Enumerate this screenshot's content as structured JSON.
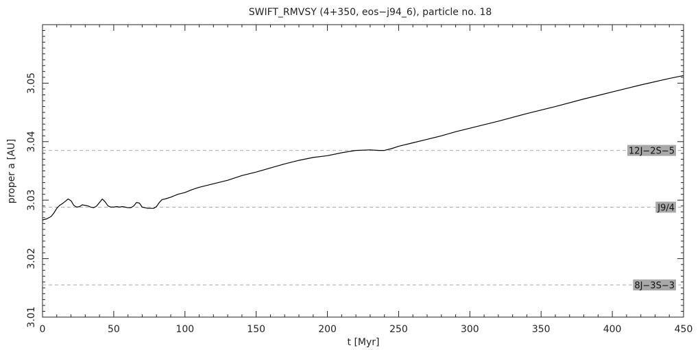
{
  "chart_data": {
    "type": "line",
    "title": "SWIFT_RMVSY (4+350, eos−j94_6), particle no. 18",
    "xlabel": "t [Myr]",
    "ylabel": "proper a [AU]",
    "xlim": [
      0,
      450
    ],
    "ylim": [
      3.01,
      3.06
    ],
    "x_ticks": [
      0,
      50,
      100,
      150,
      200,
      250,
      300,
      350,
      400,
      450
    ],
    "y_ticks": [
      3.01,
      3.02,
      3.03,
      3.04,
      3.05
    ],
    "x_tick_labels": [
      "0",
      "50",
      "100",
      "150",
      "200",
      "250",
      "300",
      "350",
      "400",
      "450"
    ],
    "y_tick_labels": [
      "3.01",
      "3.02",
      "3.03",
      "3.04",
      "3.05"
    ],
    "grid": false,
    "series": [
      {
        "x": [
          0,
          3,
          6,
          8,
          10,
          12,
          14,
          16,
          18,
          20,
          22,
          24,
          26,
          28,
          30,
          32,
          34,
          36,
          38,
          40,
          42,
          44,
          46,
          48,
          50,
          52,
          54,
          56,
          58,
          60,
          62,
          64,
          66,
          68,
          70,
          72,
          74,
          76,
          78,
          80,
          82,
          84,
          86,
          90,
          95,
          100,
          105,
          110,
          120,
          130,
          140,
          150,
          160,
          170,
          180,
          190,
          200,
          210,
          220,
          230,
          236,
          240,
          245,
          250,
          260,
          270,
          280,
          290,
          300,
          320,
          340,
          360,
          380,
          400,
          420,
          440,
          450
        ],
        "values": [
          3.0266,
          3.0268,
          3.0272,
          3.0278,
          3.0286,
          3.0291,
          3.0294,
          3.0298,
          3.0302,
          3.0299,
          3.0291,
          3.0288,
          3.0289,
          3.0292,
          3.0291,
          3.029,
          3.0288,
          3.0287,
          3.029,
          3.0296,
          3.0302,
          3.0297,
          3.029,
          3.0288,
          3.0288,
          3.0289,
          3.0288,
          3.0289,
          3.0288,
          3.0287,
          3.0287,
          3.029,
          3.0296,
          3.0295,
          3.0288,
          3.0287,
          3.0286,
          3.0286,
          3.0286,
          3.0289,
          3.0296,
          3.0301,
          3.0302,
          3.0305,
          3.031,
          3.0313,
          3.0318,
          3.0322,
          3.0328,
          3.0334,
          3.0342,
          3.0348,
          3.0355,
          3.0362,
          3.0368,
          3.0373,
          3.0376,
          3.0381,
          3.0385,
          3.0386,
          3.0385,
          3.0385,
          3.0388,
          3.0392,
          3.0398,
          3.0404,
          3.041,
          3.0417,
          3.0423,
          3.0435,
          3.0448,
          3.046,
          3.0473,
          3.0485,
          3.0497,
          3.0508,
          3.0513
        ]
      }
    ],
    "resonances": [
      {
        "label": "12J−2S−5",
        "a": 3.0385
      },
      {
        "label": "J9/4",
        "a": 3.0288
      },
      {
        "label": "8J−3S−3",
        "a": 3.0155
      }
    ]
  }
}
